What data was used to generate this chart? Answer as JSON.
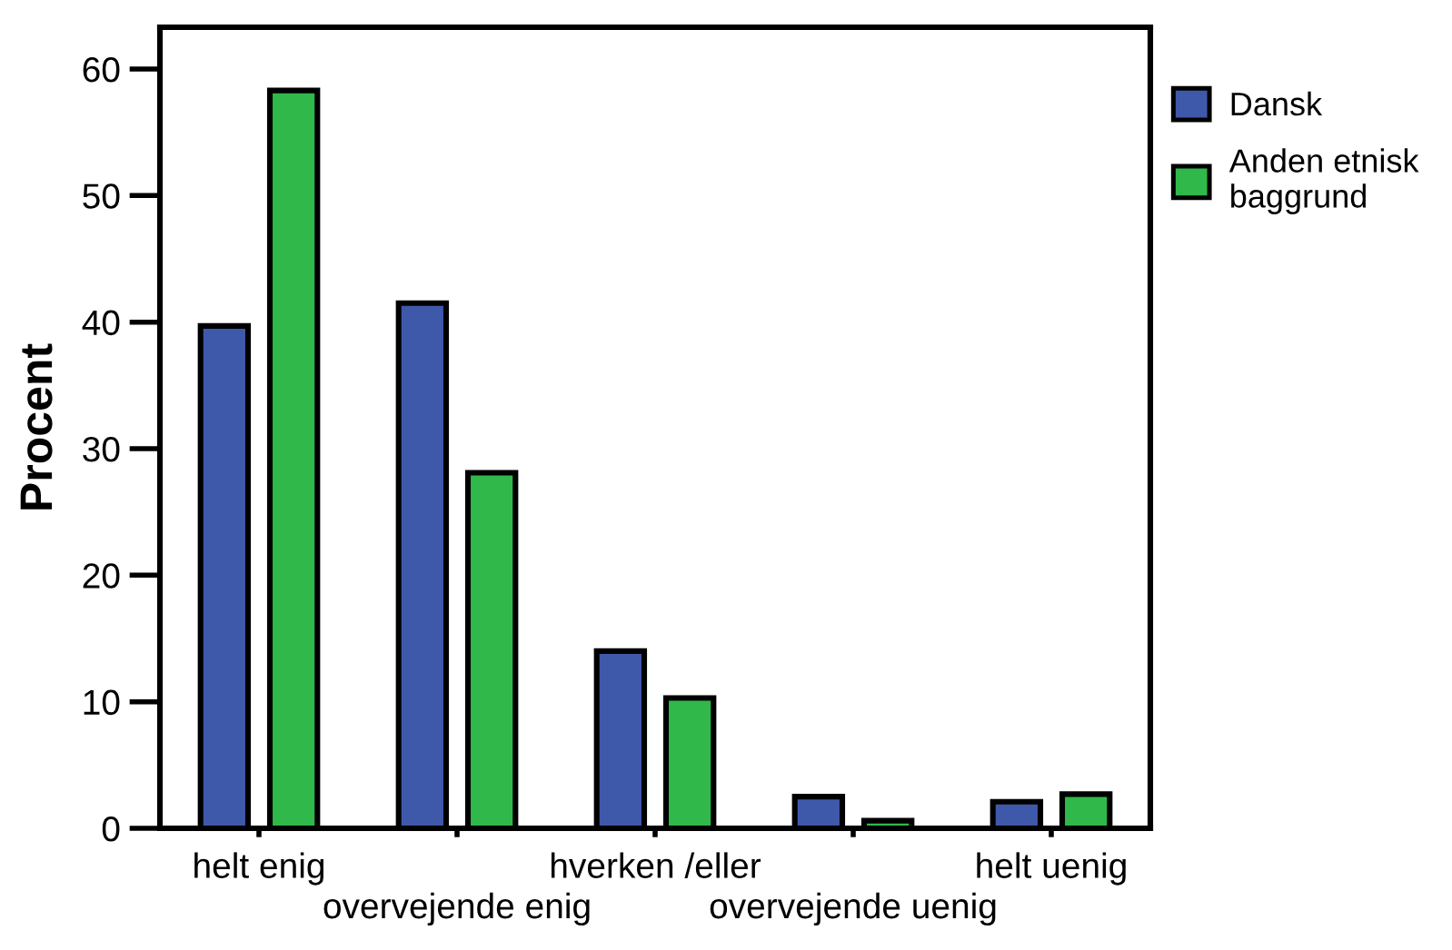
{
  "chart_data": {
    "type": "bar",
    "ylabel": "Procent",
    "categories": [
      "helt enig",
      "overvejende enig",
      "hverken /eller",
      "overvejende uenig",
      "helt uenig"
    ],
    "series": [
      {
        "name": "Dansk",
        "color": "#3f59aa",
        "values": [
          39.7,
          41.5,
          14.0,
          2.5,
          2.1
        ]
      },
      {
        "name": "Anden etnisk baggrund",
        "color": "#30b84a",
        "values": [
          58.3,
          28.1,
          10.3,
          0.6,
          2.7
        ]
      }
    ],
    "ylim": [
      0,
      63.3
    ],
    "yticks": [
      0,
      10,
      20,
      30,
      40,
      50,
      60
    ],
    "grid": false,
    "legend": "right"
  }
}
